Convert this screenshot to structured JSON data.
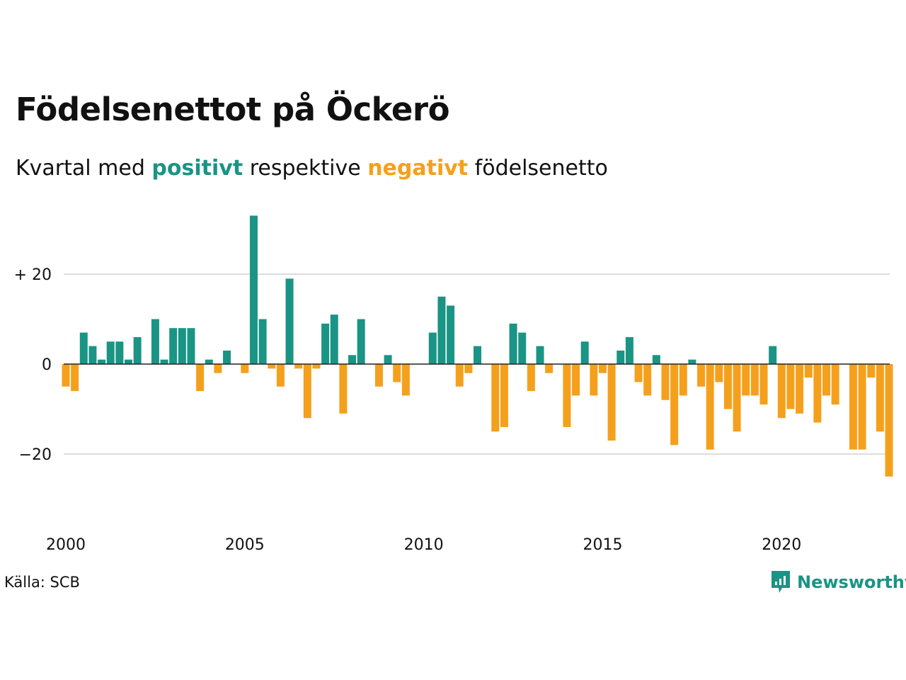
{
  "title": "Födelsenettot på Öckerö",
  "subtitle": {
    "prefix": "Kvartal med ",
    "positive": "positivt",
    "middle": " respektive ",
    "negative": "negativt",
    "suffix": " födelsenetto"
  },
  "source": "Källa: SCB",
  "brand": {
    "name": "Newsworthy",
    "icon": "newsworthy-logo-icon"
  },
  "colors": {
    "positive": "#1a9484",
    "negative": "#f5a01c",
    "grid": "#dddddd",
    "zero": "#222222"
  },
  "chart_data": {
    "type": "bar",
    "x_start": 2000.0,
    "x_step": 0.25,
    "x_ticks": [
      2000,
      2005,
      2010,
      2015,
      2020
    ],
    "x_tick_labels": [
      "2000",
      "2005",
      "2010",
      "2015",
      "2020"
    ],
    "y_ticks": [
      20,
      0,
      -20
    ],
    "y_tick_labels": [
      "+ 20",
      "0",
      "−20"
    ],
    "ylim": [
      -30,
      36
    ],
    "grid": true,
    "values": [
      -5,
      -6,
      7,
      4,
      1,
      5,
      5,
      1,
      6,
      0,
      10,
      1,
      8,
      8,
      8,
      -6,
      1,
      -2,
      3,
      0,
      -2,
      33,
      10,
      -1,
      -5,
      19,
      -1,
      -12,
      -1,
      9,
      11,
      -11,
      2,
      10,
      0,
      -5,
      2,
      -4,
      -7,
      0,
      0,
      7,
      15,
      13,
      -5,
      -2,
      4,
      0,
      -15,
      -14,
      9,
      7,
      -6,
      4,
      -2,
      0,
      -14,
      -7,
      5,
      -7,
      -2,
      -17,
      3,
      6,
      -4,
      -7,
      2,
      -8,
      -18,
      -7,
      1,
      -5,
      -19,
      -4,
      -10,
      -15,
      -7,
      -7,
      -9,
      4,
      -12,
      -10,
      -11,
      -3,
      -13,
      -7,
      -9,
      0,
      -19,
      -19,
      -3,
      -15,
      -25
    ]
  }
}
